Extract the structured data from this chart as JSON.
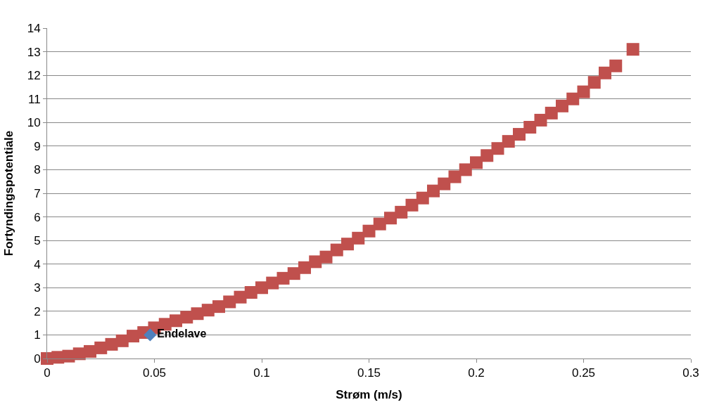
{
  "chart_data": {
    "type": "scatter",
    "xlabel": "Strøm (m/s)",
    "ylabel": "Fortyndingspotentiale",
    "xlim": [
      0,
      0.3
    ],
    "xticks": [
      0,
      0.05,
      0.1,
      0.15,
      0.2,
      0.25,
      0.3
    ],
    "ylim": [
      0,
      14
    ],
    "yticks": [
      0,
      1,
      2,
      3,
      4,
      5,
      6,
      7,
      8,
      9,
      10,
      11,
      12,
      13,
      14
    ],
    "grid": "y",
    "legend": false,
    "series": [
      {
        "color": "#c0504d",
        "marker": "square",
        "x": [
          0,
          0.005,
          0.01,
          0.015,
          0.02,
          0.025,
          0.03,
          0.035,
          0.04,
          0.045,
          0.05,
          0.055,
          0.06,
          0.065,
          0.07,
          0.075,
          0.08,
          0.085,
          0.09,
          0.095,
          0.1,
          0.105,
          0.11,
          0.115,
          0.12,
          0.125,
          0.13,
          0.135,
          0.14,
          0.145,
          0.15,
          0.155,
          0.16,
          0.165,
          0.17,
          0.175,
          0.18,
          0.185,
          0.19,
          0.195,
          0.2,
          0.205,
          0.21,
          0.215,
          0.22,
          0.225,
          0.23,
          0.235,
          0.24,
          0.245,
          0.25,
          0.255,
          0.26,
          0.265,
          0.273
        ],
        "values": [
          0,
          0.05,
          0.1,
          0.2,
          0.3,
          0.45,
          0.6,
          0.75,
          0.95,
          1.1,
          1.3,
          1.45,
          1.6,
          1.75,
          1.9,
          2.05,
          2.2,
          2.4,
          2.6,
          2.8,
          3.0,
          3.2,
          3.4,
          3.6,
          3.85,
          4.1,
          4.3,
          4.6,
          4.85,
          5.1,
          5.4,
          5.7,
          5.95,
          6.2,
          6.5,
          6.8,
          7.1,
          7.4,
          7.7,
          8.0,
          8.3,
          8.6,
          8.9,
          9.2,
          9.5,
          9.8,
          10.1,
          10.4,
          10.7,
          11.0,
          11.3,
          11.7,
          12.1,
          12.4,
          13.1
        ]
      },
      {
        "name": "Endelave",
        "color": "#4f81bd",
        "marker": "diamond",
        "x": [
          0.048
        ],
        "values": [
          1.0
        ]
      }
    ]
  }
}
